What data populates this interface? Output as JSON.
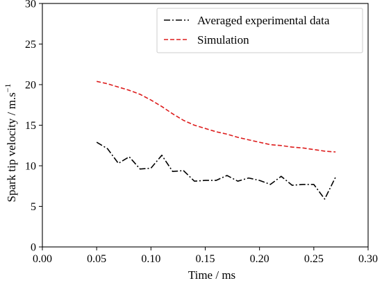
{
  "chart_data": {
    "type": "line",
    "title": "",
    "xlabel": "Time / ms",
    "ylabel_main": "Spark tip velocity / m.s",
    "ylabel_exponent": "−1",
    "xlim": [
      0.0,
      0.3
    ],
    "ylim": [
      0,
      30
    ],
    "x_ticks": [
      0.0,
      0.05,
      0.1,
      0.15,
      0.2,
      0.25,
      0.3
    ],
    "x_tick_labels": [
      "0.00",
      "0.05",
      "0.10",
      "0.15",
      "0.20",
      "0.25",
      "0.30"
    ],
    "y_ticks": [
      0,
      5,
      10,
      15,
      20,
      25,
      30
    ],
    "y_tick_labels": [
      "0",
      "5",
      "10",
      "15",
      "20",
      "25",
      "30"
    ],
    "grid": false,
    "legend_position": "top-right",
    "series": [
      {
        "name": "Averaged experimental data",
        "color": "#000000",
        "line_style": "dash-dot",
        "x": [
          0.05,
          0.06,
          0.07,
          0.08,
          0.09,
          0.1,
          0.11,
          0.12,
          0.13,
          0.14,
          0.15,
          0.16,
          0.17,
          0.18,
          0.19,
          0.2,
          0.21,
          0.22,
          0.23,
          0.24,
          0.25,
          0.26,
          0.27
        ],
        "y": [
          12.9,
          12.1,
          10.3,
          11.1,
          9.6,
          9.7,
          11.3,
          9.3,
          9.4,
          8.1,
          8.2,
          8.2,
          8.8,
          8.1,
          8.5,
          8.2,
          7.7,
          8.7,
          7.6,
          7.7,
          7.7,
          5.9,
          8.6
        ]
      },
      {
        "name": "Simulation",
        "color": "#dd1c1c",
        "line_style": "dashed",
        "x": [
          0.05,
          0.06,
          0.07,
          0.08,
          0.09,
          0.1,
          0.11,
          0.12,
          0.13,
          0.14,
          0.15,
          0.16,
          0.17,
          0.18,
          0.19,
          0.2,
          0.21,
          0.22,
          0.23,
          0.24,
          0.25,
          0.26,
          0.27
        ],
        "y": [
          20.4,
          20.1,
          19.7,
          19.3,
          18.8,
          18.1,
          17.3,
          16.4,
          15.6,
          15.0,
          14.6,
          14.2,
          13.9,
          13.5,
          13.2,
          12.9,
          12.6,
          12.5,
          12.3,
          12.2,
          12.0,
          11.8,
          11.7
        ]
      }
    ]
  }
}
